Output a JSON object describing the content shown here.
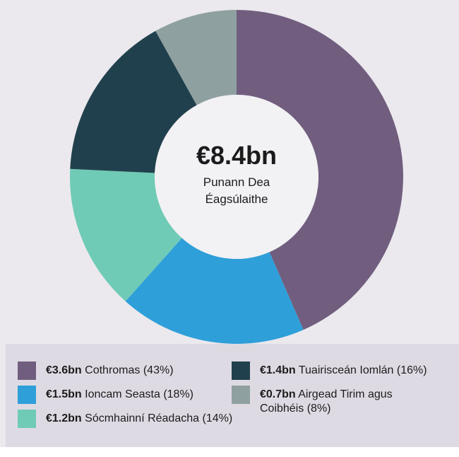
{
  "chart_data": {
    "type": "donut",
    "center_label": "€8.4bn",
    "center_sublabel": "Punann Dea Éagsúlaithe",
    "categories": [
      "Cothromas",
      "Ioncam Seasta",
      "Sócmhainní Réadacha",
      "Tuairisceán Iomlán",
      "Airgead Tirim agus Coibhéis"
    ],
    "values": [
      43,
      18,
      14,
      16,
      8
    ],
    "value_labels": [
      "(43%)",
      "(18%)",
      "(14%)",
      "(16%)",
      "(8%)"
    ],
    "amount_labels": [
      "€3.6bn",
      "€1.5bn",
      "€1.2bn",
      "€1.4bn",
      "€0.7bn"
    ],
    "colors": [
      "#715e7f",
      "#2f9fd9",
      "#6fcbb5",
      "#21404d",
      "#8fa0a0"
    ]
  }
}
